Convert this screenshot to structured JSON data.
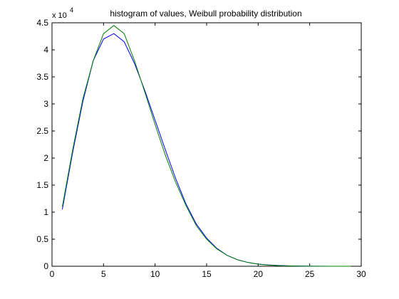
{
  "chart_data": {
    "type": "line",
    "title": "histogram of values, Weibull probability distribution",
    "xlabel": "",
    "ylabel": "",
    "xlim": [
      0,
      30
    ],
    "ylim": [
      0,
      4.5
    ],
    "y_multiplier_label": "x 10",
    "y_multiplier_exponent": "4",
    "xticks": [
      0,
      5,
      10,
      15,
      20,
      25,
      30
    ],
    "yticks": [
      0,
      0.5,
      1,
      1.5,
      2,
      2.5,
      3,
      3.5,
      4,
      4.5
    ],
    "grid": false,
    "legend": "none",
    "x": [
      1,
      2,
      3,
      4,
      5,
      6,
      7,
      8,
      9,
      10,
      11,
      12,
      13,
      14,
      15,
      16,
      17,
      18,
      19,
      20,
      21,
      22,
      23,
      24,
      25,
      26,
      27,
      28,
      29
    ],
    "series": [
      {
        "color": "#0000ff",
        "values": [
          1.05,
          2.1,
          3.05,
          3.8,
          4.2,
          4.3,
          4.15,
          3.75,
          3.25,
          2.7,
          2.15,
          1.62,
          1.15,
          0.78,
          0.52,
          0.33,
          0.2,
          0.12,
          0.07,
          0.04,
          0.025,
          0.015,
          0.008,
          0.004,
          0.002,
          0.001,
          0.0005,
          0.0002,
          0.0001
        ]
      },
      {
        "color": "#008000",
        "values": [
          1.1,
          2.15,
          3.1,
          3.8,
          4.3,
          4.45,
          4.3,
          3.8,
          3.22,
          2.62,
          2.05,
          1.55,
          1.12,
          0.75,
          0.5,
          0.32,
          0.2,
          0.12,
          0.07,
          0.04,
          0.02,
          0.012,
          0.006,
          0.003,
          0.0015,
          0.0008,
          0.0004,
          0.0002,
          0.0001
        ]
      }
    ]
  }
}
